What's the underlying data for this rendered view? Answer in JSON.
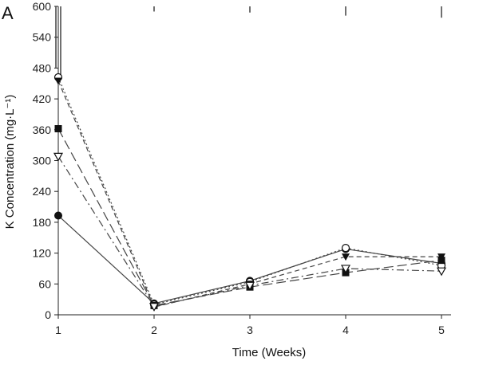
{
  "panel_label": "A",
  "chart_data": {
    "type": "line",
    "xlabel": "Time (Weeks)",
    "ylabel": "K Concentration (mg·L⁻¹)",
    "x": [
      1,
      2,
      3,
      4,
      5
    ],
    "xlim": [
      1,
      5
    ],
    "ylim": [
      0,
      600
    ],
    "yticks": [
      0,
      60,
      120,
      180,
      240,
      300,
      360,
      420,
      480,
      540,
      600
    ],
    "xticks": [
      1,
      2,
      3,
      4,
      5
    ],
    "grid": false,
    "series": [
      {
        "name": "filled circle",
        "marker": "circle-filled",
        "dash": "solid",
        "values": [
          193,
          22,
          66,
          128,
          100
        ]
      },
      {
        "name": "open circle",
        "marker": "circle-open",
        "dash": "dotted",
        "values": [
          462,
          20,
          64,
          130,
          96
        ]
      },
      {
        "name": "filled triangle",
        "marker": "triangle-down-filled",
        "dash": "short-dash",
        "values": [
          455,
          15,
          60,
          113,
          113
        ]
      },
      {
        "name": "filled square",
        "marker": "square-filled",
        "dash": "long-dash",
        "values": [
          362,
          18,
          54,
          82,
          106
        ]
      },
      {
        "name": "open triangle",
        "marker": "triangle-down-open",
        "dash": "dash-dot",
        "values": [
          308,
          16,
          57,
          90,
          85
        ]
      }
    ],
    "error_bars": [
      {
        "x": 1,
        "low": 480,
        "high": 600
      },
      {
        "x": 1,
        "low": 465,
        "high": 600
      },
      {
        "x": 2,
        "low": 590,
        "high": 600
      },
      {
        "x": 3,
        "low": 588,
        "high": 600
      },
      {
        "x": 4,
        "low": 582,
        "high": 600
      },
      {
        "x": 5,
        "low": 578,
        "high": 600
      }
    ]
  }
}
